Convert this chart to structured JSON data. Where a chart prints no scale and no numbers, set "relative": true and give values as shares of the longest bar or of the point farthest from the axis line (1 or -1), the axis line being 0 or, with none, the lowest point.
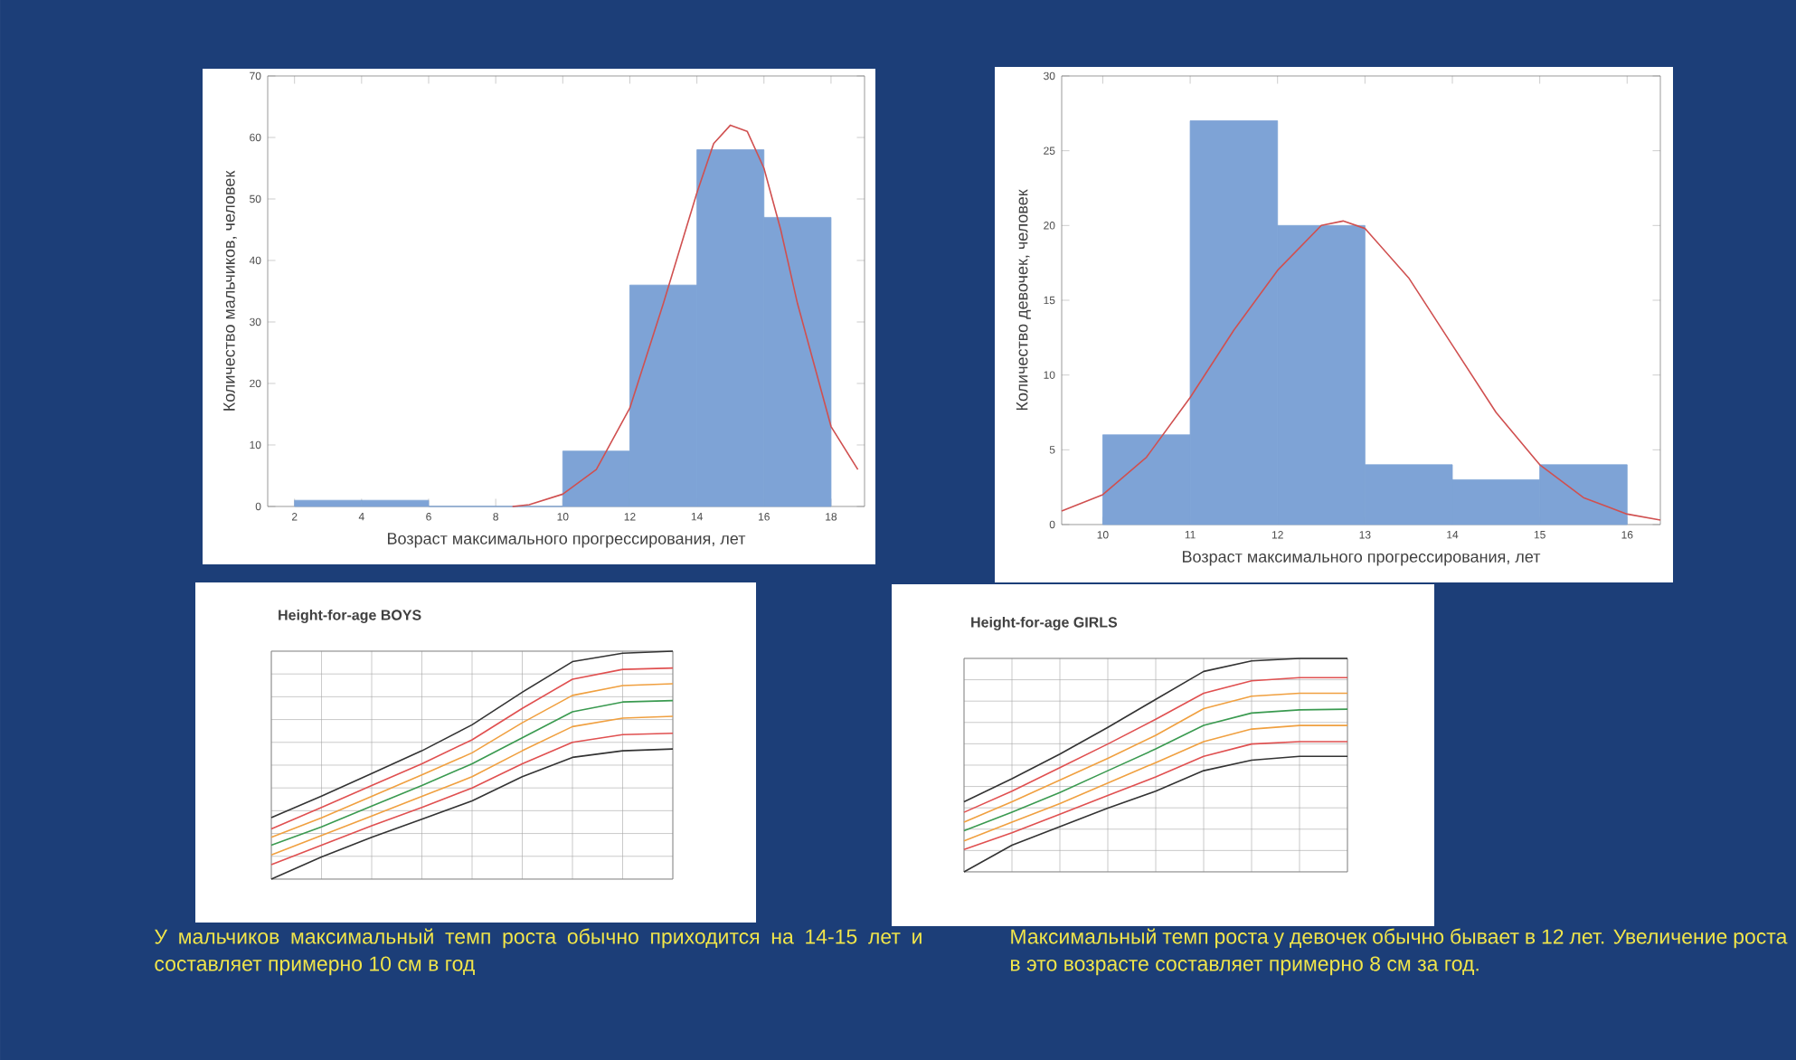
{
  "chart_data": [
    {
      "type": "histogram",
      "ylabel": "Количество мальчиков, человек",
      "xlabel": "Возраст максимального прогрессирования, лет",
      "bins": [
        2,
        4,
        6,
        8,
        10,
        12,
        14,
        16,
        18
      ],
      "values": [
        1,
        1,
        0,
        0,
        9,
        36,
        58,
        47
      ],
      "color": "#7ea3d6",
      "xlim": [
        1.2,
        19
      ],
      "ylim": [
        0,
        70
      ],
      "xticks": [
        2,
        4,
        6,
        8,
        10,
        12,
        14,
        16,
        18
      ],
      "yticks": [
        0,
        10,
        20,
        30,
        40,
        50,
        60,
        70
      ],
      "series": [
        {
          "type": "line",
          "color": "#d05050",
          "x": [
            8.5,
            9,
            10,
            11,
            12,
            13,
            14,
            14.5,
            15,
            15.5,
            16,
            16.5,
            17,
            18,
            18.8
          ],
          "values": [
            0,
            0.3,
            2,
            6,
            16,
            33,
            51,
            59,
            62,
            61,
            55,
            45,
            33,
            13,
            6
          ]
        }
      ]
    },
    {
      "type": "histogram",
      "ylabel": "Количество девочек, человек",
      "xlabel": "Возраст максимального прогрессирования, лет",
      "bins": [
        10,
        11,
        12,
        13,
        14,
        15,
        16
      ],
      "values": [
        6,
        27,
        20,
        4,
        3,
        4
      ],
      "color": "#7ea3d6",
      "xlim": [
        9.53,
        16.38
      ],
      "ylim": [
        0,
        30
      ],
      "xticks": [
        10,
        11,
        12,
        13,
        14,
        15,
        16
      ],
      "yticks": [
        0,
        5,
        10,
        15,
        20,
        25,
        30
      ],
      "series": [
        {
          "type": "line",
          "color": "#d05050",
          "x": [
            9.53,
            10,
            10.5,
            11,
            11.5,
            12,
            12.5,
            12.75,
            13,
            13.5,
            14,
            14.5,
            15,
            15.5,
            16,
            16.38
          ],
          "values": [
            0.9,
            2,
            4.5,
            8.5,
            13,
            17,
            20,
            20.3,
            19.8,
            16.5,
            12,
            7.5,
            4,
            1.8,
            0.7,
            0.3
          ]
        }
      ]
    },
    {
      "type": "line",
      "title": "Height-for-age BOYS",
      "relative": true,
      "grid": true,
      "marker": "none",
      "categories": [
        null,
        null,
        null,
        null,
        null,
        null,
        null,
        null,
        null
      ],
      "series": [
        {
          "color": "#333333",
          "values": [
            0.27,
            0.364,
            0.463,
            0.563,
            0.677,
            0.82,
            0.954,
            0.991,
            1.0
          ]
        },
        {
          "color": "#e05050",
          "values": [
            0.22,
            0.314,
            0.411,
            0.506,
            0.611,
            0.749,
            0.877,
            0.92,
            0.926
          ]
        },
        {
          "color": "#f0a040",
          "values": [
            0.183,
            0.269,
            0.363,
            0.457,
            0.554,
            0.686,
            0.806,
            0.849,
            0.857
          ]
        },
        {
          "color": "#3a9a50",
          "values": [
            0.149,
            0.229,
            0.32,
            0.411,
            0.506,
            0.62,
            0.734,
            0.777,
            0.783
          ]
        },
        {
          "color": "#f0a040",
          "values": [
            0.106,
            0.191,
            0.277,
            0.363,
            0.449,
            0.563,
            0.669,
            0.706,
            0.714
          ]
        },
        {
          "color": "#e05050",
          "values": [
            0.063,
            0.149,
            0.234,
            0.314,
            0.4,
            0.506,
            0.6,
            0.634,
            0.64
          ]
        },
        {
          "color": "#333333",
          "values": [
            0,
            0.097,
            0.183,
            0.263,
            0.343,
            0.449,
            0.534,
            0.563,
            0.571
          ]
        }
      ],
      "annotations": [
        "У мальчиков максимальный темп роста обычно приходится на 14-15 лет и составляет примерно 10 см в год"
      ]
    },
    {
      "type": "line",
      "title": "Height-for-age GIRLS",
      "relative": true,
      "grid": true,
      "marker": "none",
      "categories": [
        null,
        null,
        null,
        null,
        null,
        null,
        null,
        null,
        null
      ],
      "series": [
        {
          "color": "#333333",
          "values": [
            0.328,
            0.436,
            0.552,
            0.677,
            0.808,
            0.939,
            0.988,
            1.0,
            1.0
          ]
        },
        {
          "color": "#e05050",
          "values": [
            0.279,
            0.378,
            0.488,
            0.599,
            0.715,
            0.837,
            0.895,
            0.91,
            0.91
          ]
        },
        {
          "color": "#f0a040",
          "values": [
            0.233,
            0.328,
            0.43,
            0.532,
            0.64,
            0.765,
            0.823,
            0.837,
            0.837
          ]
        },
        {
          "color": "#3a9a50",
          "values": [
            0.193,
            0.28,
            0.372,
            0.474,
            0.576,
            0.686,
            0.744,
            0.759,
            0.762
          ]
        },
        {
          "color": "#f0a040",
          "values": [
            0.145,
            0.233,
            0.32,
            0.416,
            0.512,
            0.61,
            0.669,
            0.686,
            0.686
          ]
        },
        {
          "color": "#e05050",
          "values": [
            0.105,
            0.183,
            0.27,
            0.358,
            0.445,
            0.541,
            0.599,
            0.61,
            0.61
          ]
        },
        {
          "color": "#333333",
          "values": [
            0,
            0.125,
            0.212,
            0.299,
            0.378,
            0.474,
            0.523,
            0.541,
            0.541
          ]
        }
      ],
      "annotations": [
        "Максимальный темп роста у девочек обычно бывает в 12 лет. Увеличение роста в это возрасте составляет примерно 8 см за год."
      ]
    }
  ]
}
